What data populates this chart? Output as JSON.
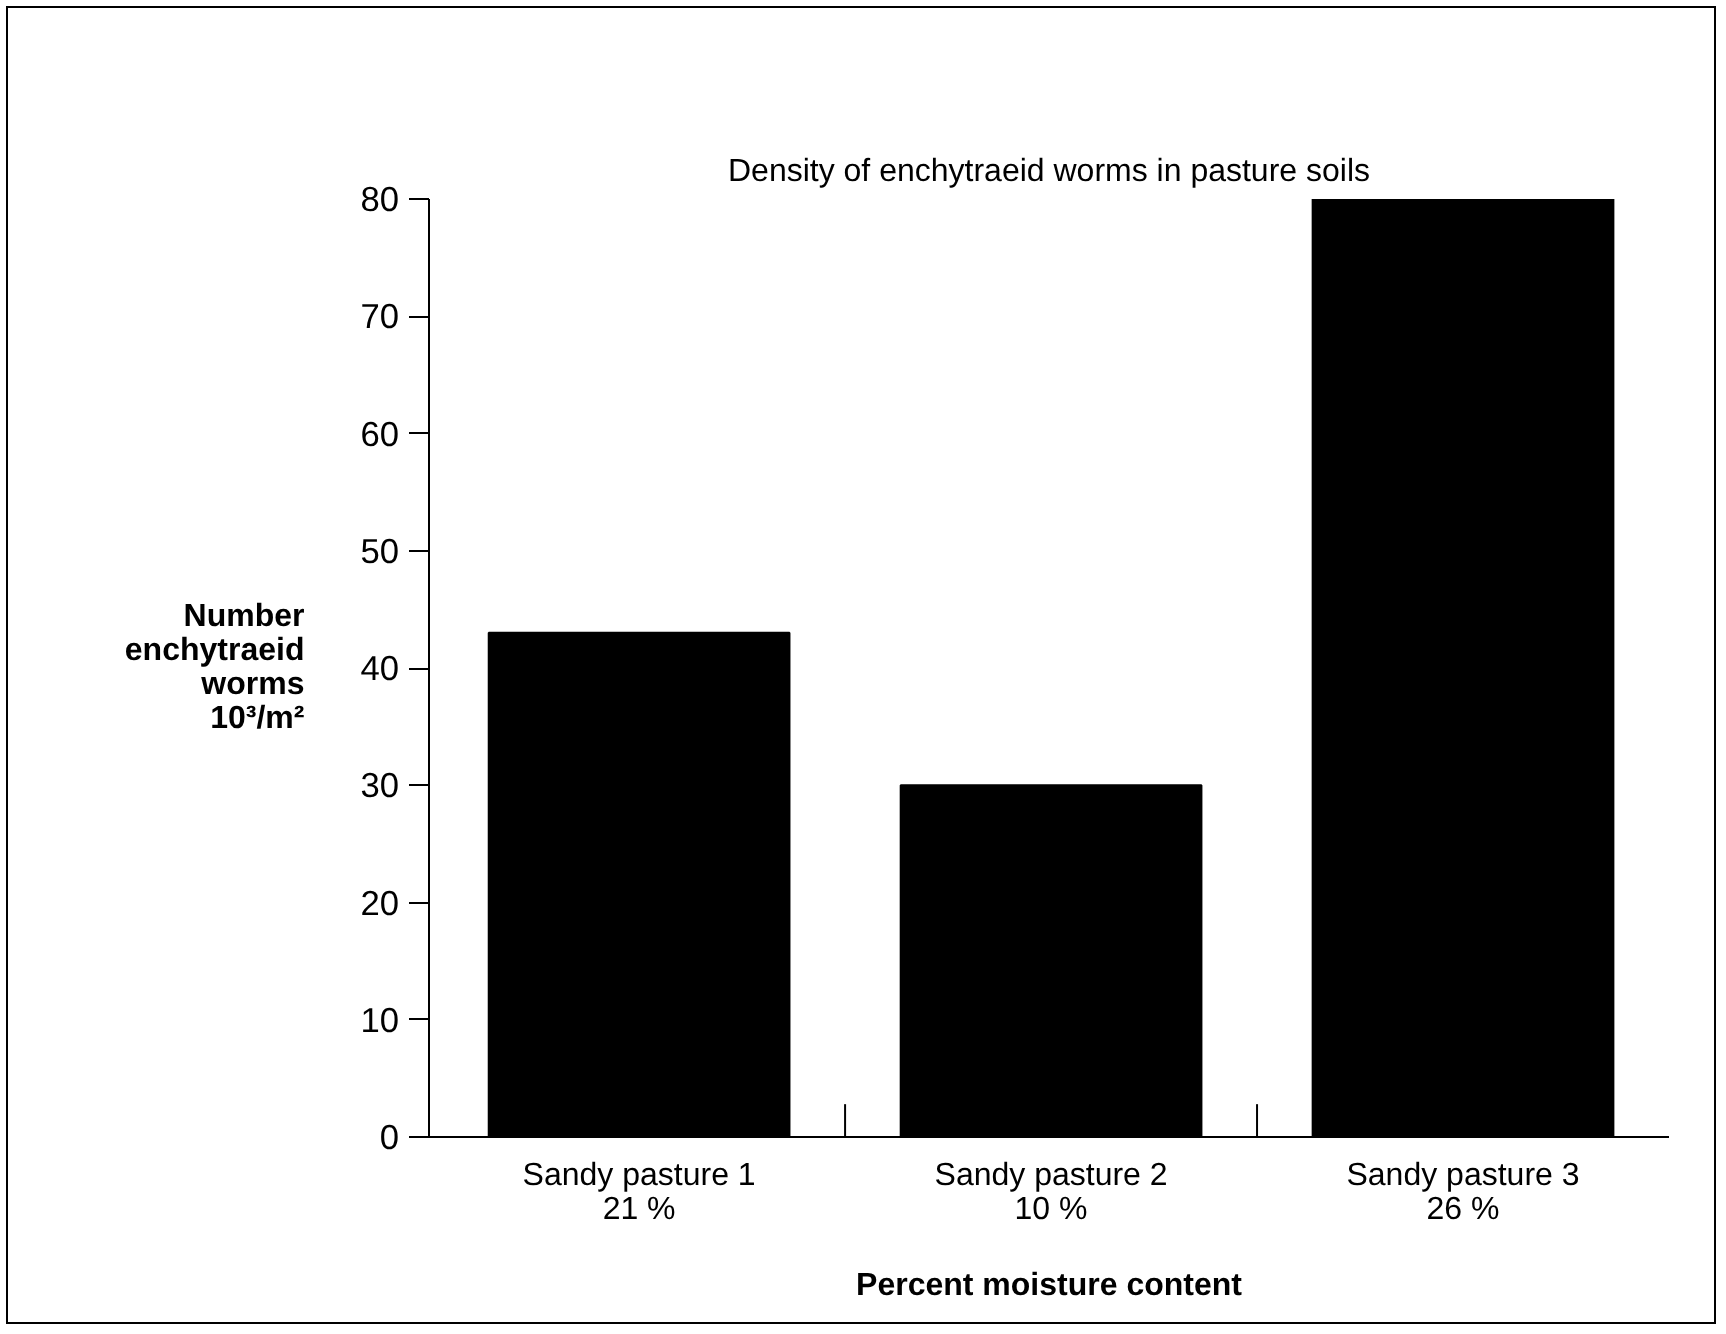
{
  "chart_data": {
    "type": "bar",
    "title": "Density of enchytraeid worms in pasture soils",
    "categories": [
      "Sandy pasture 1\n21 %",
      "Sandy pasture 2\n10 %",
      "Sandy pasture 3\n26 %"
    ],
    "values": [
      43,
      30,
      80
    ],
    "color": "#000000",
    "xlabel": "Percent moisture content",
    "ylabel": "Number\nenchytraeid\nworms\n10³/m²",
    "ylim": [
      0,
      80
    ],
    "yticks": [
      0,
      10,
      20,
      30,
      40,
      50,
      60,
      70,
      80
    ],
    "grid": false
  }
}
